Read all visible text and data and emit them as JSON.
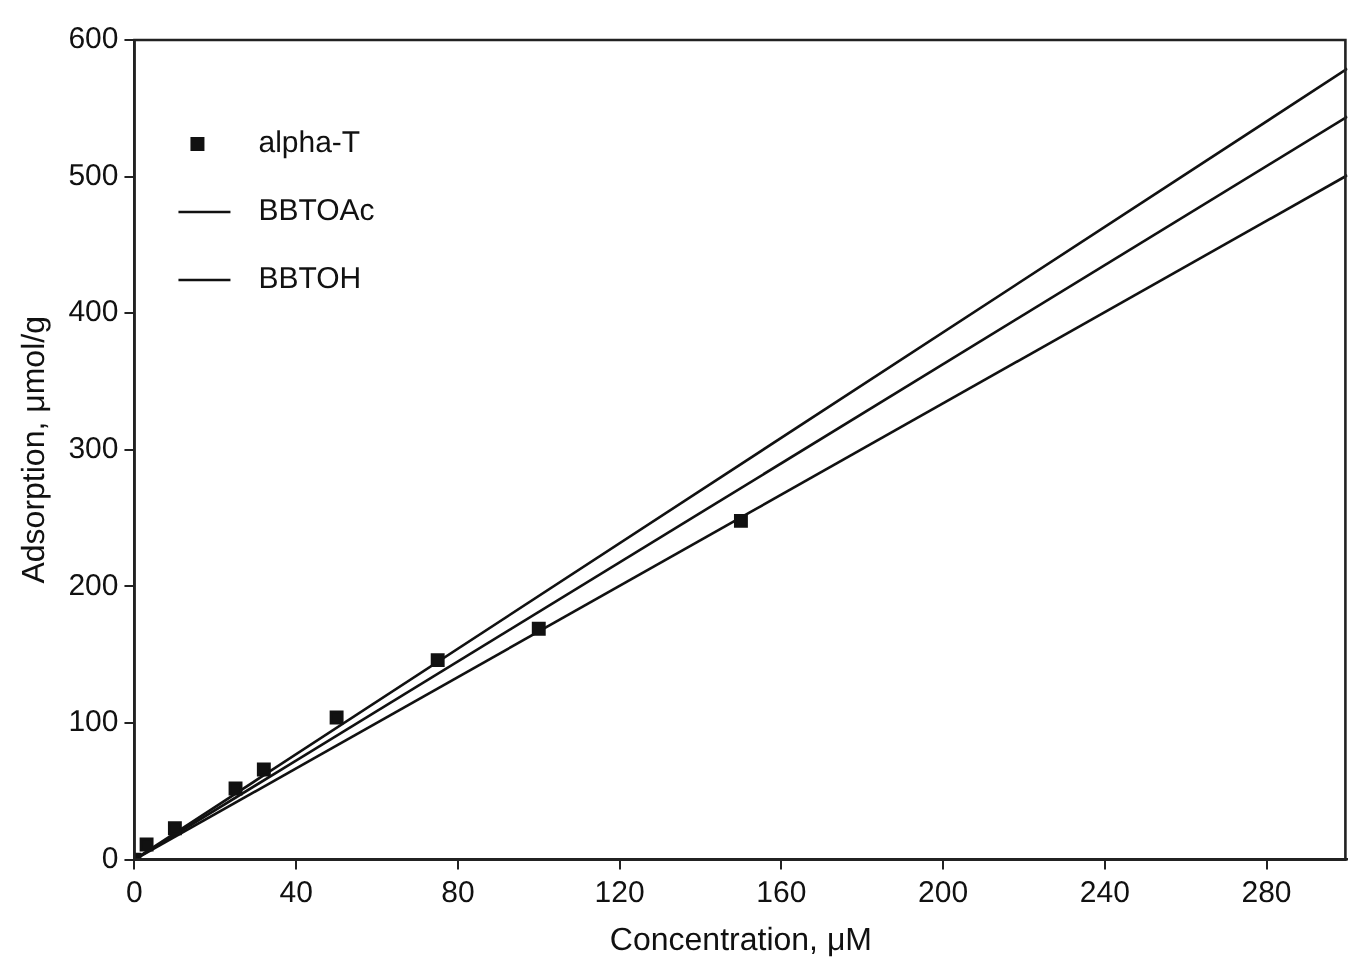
{
  "chart_data": {
    "type": "scatter",
    "xlabel": "Concentration, μM",
    "ylabel": "Adsorption, μmol/g",
    "xlim": [
      0,
      300
    ],
    "xticks": [
      0,
      40,
      80,
      120,
      160,
      200,
      240,
      280
    ],
    "ylim": [
      0,
      600
    ],
    "yticks": [
      0,
      100,
      200,
      300,
      400,
      500,
      600
    ],
    "grid": false,
    "legend": "top left",
    "marker": "square",
    "series": [
      {
        "name": "alpha-T",
        "color": "#111111",
        "x": [
          0,
          3,
          10,
          25,
          32,
          50,
          75,
          100,
          150
        ],
        "values": [
          0,
          11,
          23,
          52,
          66,
          104,
          146,
          169,
          248
        ]
      },
      {
        "name": "BBTOAc",
        "type": "line",
        "color": "#111111",
        "marker": "none",
        "x": [
          0,
          300
        ],
        "values": [
          0,
          579
        ]
      },
      {
        "name": "BBTOH",
        "type": "line",
        "color": "#111111",
        "marker": "none",
        "x": [
          0,
          300
        ],
        "values": [
          0,
          544
        ]
      },
      {
        "type": "line",
        "color": "#111111",
        "marker": "none",
        "x": [
          0,
          300
        ],
        "values": [
          0,
          501
        ]
      }
    ]
  }
}
